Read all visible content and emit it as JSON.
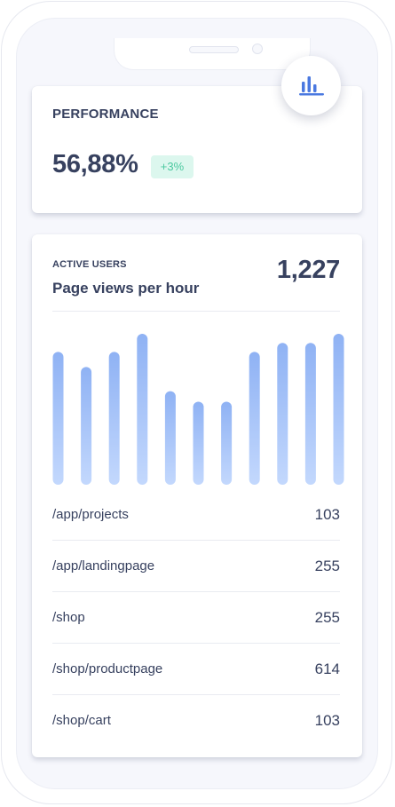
{
  "performance": {
    "title": "PERFORMANCE",
    "value": "56,88%",
    "badge": "+3%",
    "badge_color": "#4cc9a0",
    "fab_icon": "bar-chart-icon"
  },
  "active_users": {
    "eyebrow": "ACTIVE USERS",
    "subtitle": "Page views per hour",
    "count": "1,227"
  },
  "chart_data": {
    "type": "bar",
    "values": [
      88,
      78,
      88,
      100,
      62,
      55,
      55,
      88,
      94,
      94,
      100
    ],
    "ylim": [
      0,
      100
    ],
    "bar_color_top": "#8fb2f4",
    "bar_color_bottom": "#c3d8fd"
  },
  "pages": [
    {
      "path": "/app/projects",
      "count": "103"
    },
    {
      "path": "/app/landingpage",
      "count": "255"
    },
    {
      "path": "/shop",
      "count": "255"
    },
    {
      "path": "/shop/productpage",
      "count": "614"
    },
    {
      "path": "/shop/cart",
      "count": "103"
    }
  ]
}
